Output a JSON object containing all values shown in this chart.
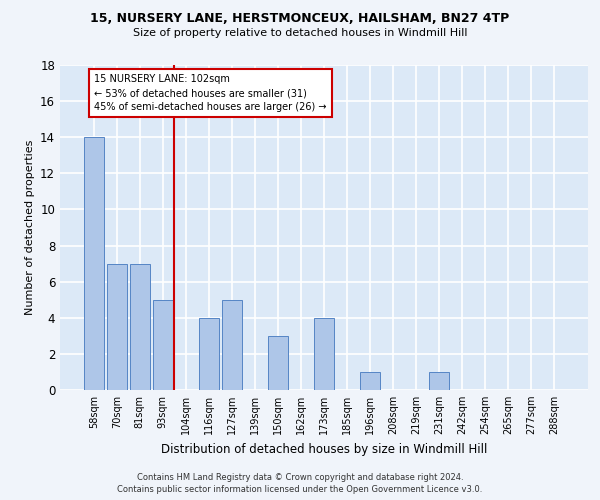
{
  "title1": "15, NURSERY LANE, HERSTMONCEUX, HAILSHAM, BN27 4TP",
  "title2": "Size of property relative to detached houses in Windmill Hill",
  "xlabel": "Distribution of detached houses by size in Windmill Hill",
  "ylabel": "Number of detached properties",
  "categories": [
    "58sqm",
    "70sqm",
    "81sqm",
    "93sqm",
    "104sqm",
    "116sqm",
    "127sqm",
    "139sqm",
    "150sqm",
    "162sqm",
    "173sqm",
    "185sqm",
    "196sqm",
    "208sqm",
    "219sqm",
    "231sqm",
    "242sqm",
    "254sqm",
    "265sqm",
    "277sqm",
    "288sqm"
  ],
  "values": [
    14,
    7,
    7,
    5,
    0,
    4,
    5,
    0,
    3,
    0,
    4,
    0,
    1,
    0,
    0,
    1,
    0,
    0,
    0,
    0,
    0
  ],
  "bar_color": "#aec6e8",
  "bar_edge_color": "#5585c5",
  "background_color": "#dce9f7",
  "grid_color": "#ffffff",
  "fig_background": "#f0f4fa",
  "annotation_box_text1": "15 NURSERY LANE: 102sqm",
  "annotation_box_text2": "← 53% of detached houses are smaller (31)",
  "annotation_box_text3": "45% of semi-detached houses are larger (26) →",
  "vline_color": "#cc0000",
  "ylim": [
    0,
    18
  ],
  "yticks": [
    0,
    2,
    4,
    6,
    8,
    10,
    12,
    14,
    16,
    18
  ],
  "footnote1": "Contains HM Land Registry data © Crown copyright and database right 2024.",
  "footnote2": "Contains public sector information licensed under the Open Government Licence v3.0."
}
